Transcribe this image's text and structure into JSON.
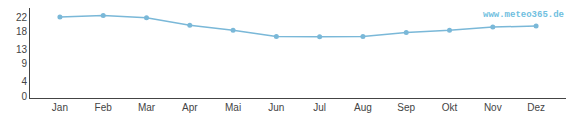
{
  "chart_data": {
    "type": "line",
    "categories": [
      "Jan",
      "Feb",
      "Mar",
      "Apr",
      "Mai",
      "Jun",
      "Jul",
      "Aug",
      "Sep",
      "Okt",
      "Nov",
      "Dez"
    ],
    "values": [
      22.0,
      22.4,
      21.8,
      19.7,
      18.3,
      16.6,
      16.5,
      16.6,
      17.7,
      18.3,
      19.2,
      19.5
    ],
    "color": "#7ab8d8",
    "marker": "circle",
    "ylim": [
      -0.5,
      24.5
    ],
    "yticks": [
      0,
      4,
      9,
      13,
      18,
      22
    ],
    "grid": false,
    "annotations": [
      {
        "text": "www.meteo365.de",
        "color": "#70c0e0"
      }
    ]
  }
}
